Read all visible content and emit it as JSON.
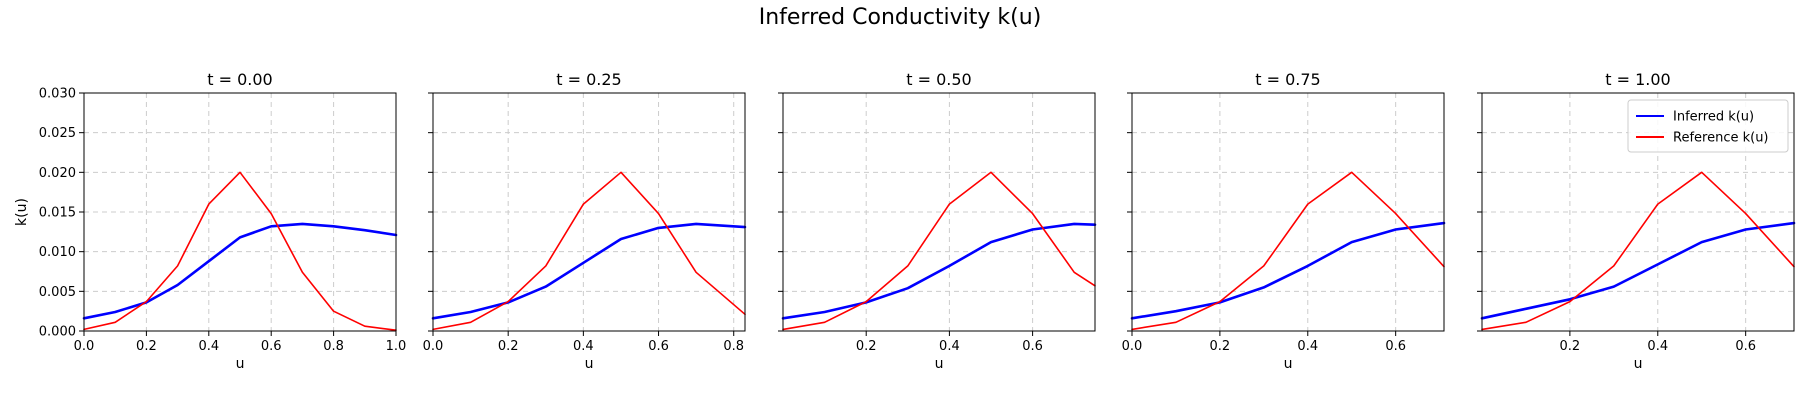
{
  "figure": {
    "title": "Inferred Conductivity k(u)"
  },
  "colors": {
    "inferred": "#0000ff",
    "reference": "#ff0000",
    "grid": "#cccccc"
  },
  "chart_data": [
    {
      "type": "line",
      "title": "t = 0.00",
      "xlabel": "u",
      "ylabel": "k(u)",
      "xlim": [
        0.0,
        1.0
      ],
      "ylim": [
        0.0,
        0.03
      ],
      "xticks": [
        "0.0",
        "0.2",
        "0.4",
        "0.6",
        "0.8",
        "1.0"
      ],
      "yticks": [
        "0.000",
        "0.005",
        "0.010",
        "0.015",
        "0.020",
        "0.025",
        "0.030"
      ],
      "grid": true,
      "series": [
        {
          "name": "Inferred k(u)",
          "x": [
            0.0,
            0.1,
            0.2,
            0.3,
            0.4,
            0.5,
            0.6,
            0.7,
            0.8,
            0.9,
            1.0
          ],
          "y": [
            0.0016,
            0.0024,
            0.0036,
            0.0058,
            0.0088,
            0.0118,
            0.0132,
            0.0135,
            0.0132,
            0.0127,
            0.0121
          ]
        },
        {
          "name": "Reference k(u)",
          "x": [
            0.0,
            0.1,
            0.2,
            0.3,
            0.4,
            0.5,
            0.6,
            0.7,
            0.8,
            0.9,
            1.0
          ],
          "y": [
            0.0002,
            0.0011,
            0.0037,
            0.0082,
            0.016,
            0.02,
            0.0148,
            0.0074,
            0.0025,
            0.0006,
            0.0001
          ]
        }
      ]
    },
    {
      "type": "line",
      "title": "t = 0.25",
      "xlabel": "u",
      "ylabel": "",
      "xlim": [
        0.0,
        0.83
      ],
      "ylim": [
        0.0,
        0.03
      ],
      "xticks": [
        "0.0",
        "0.2",
        "0.4",
        "0.6",
        "0.8"
      ],
      "yticks": [],
      "grid": true,
      "series": [
        {
          "name": "Inferred k(u)",
          "x": [
            0.0,
            0.1,
            0.2,
            0.3,
            0.4,
            0.5,
            0.6,
            0.7,
            0.83
          ],
          "y": [
            0.0016,
            0.0024,
            0.0036,
            0.0056,
            0.0086,
            0.0116,
            0.013,
            0.0135,
            0.0131
          ]
        },
        {
          "name": "Reference k(u)",
          "x": [
            0.0,
            0.1,
            0.2,
            0.3,
            0.4,
            0.5,
            0.6,
            0.7,
            0.83
          ],
          "y": [
            0.0002,
            0.0011,
            0.0037,
            0.0082,
            0.016,
            0.02,
            0.0148,
            0.0074,
            0.0021
          ]
        }
      ]
    },
    {
      "type": "line",
      "title": "t = 0.50",
      "xlabel": "u",
      "ylabel": "",
      "xlim": [
        0.0,
        0.75
      ],
      "ylim": [
        0.0,
        0.03
      ],
      "xticks": [
        "0.2",
        "0.4",
        "0.6"
      ],
      "yticks": [],
      "grid": true,
      "series": [
        {
          "name": "Inferred k(u)",
          "x": [
            0.0,
            0.1,
            0.2,
            0.3,
            0.4,
            0.5,
            0.6,
            0.7,
            0.75
          ],
          "y": [
            0.0016,
            0.0024,
            0.0036,
            0.0054,
            0.0082,
            0.0112,
            0.0128,
            0.0135,
            0.0134
          ]
        },
        {
          "name": "Reference k(u)",
          "x": [
            0.0,
            0.1,
            0.2,
            0.3,
            0.4,
            0.5,
            0.6,
            0.7,
            0.75
          ],
          "y": [
            0.0002,
            0.0011,
            0.0037,
            0.0082,
            0.016,
            0.02,
            0.0148,
            0.0074,
            0.0057
          ]
        }
      ]
    },
    {
      "type": "line",
      "title": "t = 0.75",
      "xlabel": "u",
      "ylabel": "",
      "xlim": [
        0.0,
        0.71
      ],
      "ylim": [
        0.0,
        0.03
      ],
      "xticks": [
        "0.0",
        "0.2",
        "0.4",
        "0.6"
      ],
      "yticks": [],
      "grid": true,
      "series": [
        {
          "name": "Inferred k(u)",
          "x": [
            0.0,
            0.1,
            0.2,
            0.3,
            0.4,
            0.5,
            0.6,
            0.71
          ],
          "y": [
            0.0016,
            0.0025,
            0.0036,
            0.0055,
            0.0082,
            0.0112,
            0.0128,
            0.0136
          ]
        },
        {
          "name": "Reference k(u)",
          "x": [
            0.0,
            0.1,
            0.2,
            0.3,
            0.4,
            0.5,
            0.6,
            0.71
          ],
          "y": [
            0.0002,
            0.0011,
            0.0037,
            0.0082,
            0.016,
            0.02,
            0.0148,
            0.0081
          ]
        }
      ]
    },
    {
      "type": "line",
      "title": "t = 1.00",
      "xlabel": "u",
      "ylabel": "",
      "xlim": [
        0.0,
        0.71
      ],
      "ylim": [
        0.0,
        0.03
      ],
      "xticks": [
        "0.2",
        "0.4",
        "0.6"
      ],
      "yticks": [],
      "grid": true,
      "legend": "top-right",
      "series": [
        {
          "name": "Inferred k(u)",
          "x": [
            0.0,
            0.1,
            0.2,
            0.3,
            0.4,
            0.5,
            0.6,
            0.71
          ],
          "y": [
            0.0016,
            0.0028,
            0.004,
            0.0056,
            0.0084,
            0.0112,
            0.0128,
            0.0136
          ]
        },
        {
          "name": "Reference k(u)",
          "x": [
            0.0,
            0.1,
            0.2,
            0.3,
            0.4,
            0.5,
            0.6,
            0.71
          ],
          "y": [
            0.0002,
            0.0011,
            0.0037,
            0.0082,
            0.016,
            0.02,
            0.0148,
            0.0081
          ]
        }
      ]
    }
  ]
}
